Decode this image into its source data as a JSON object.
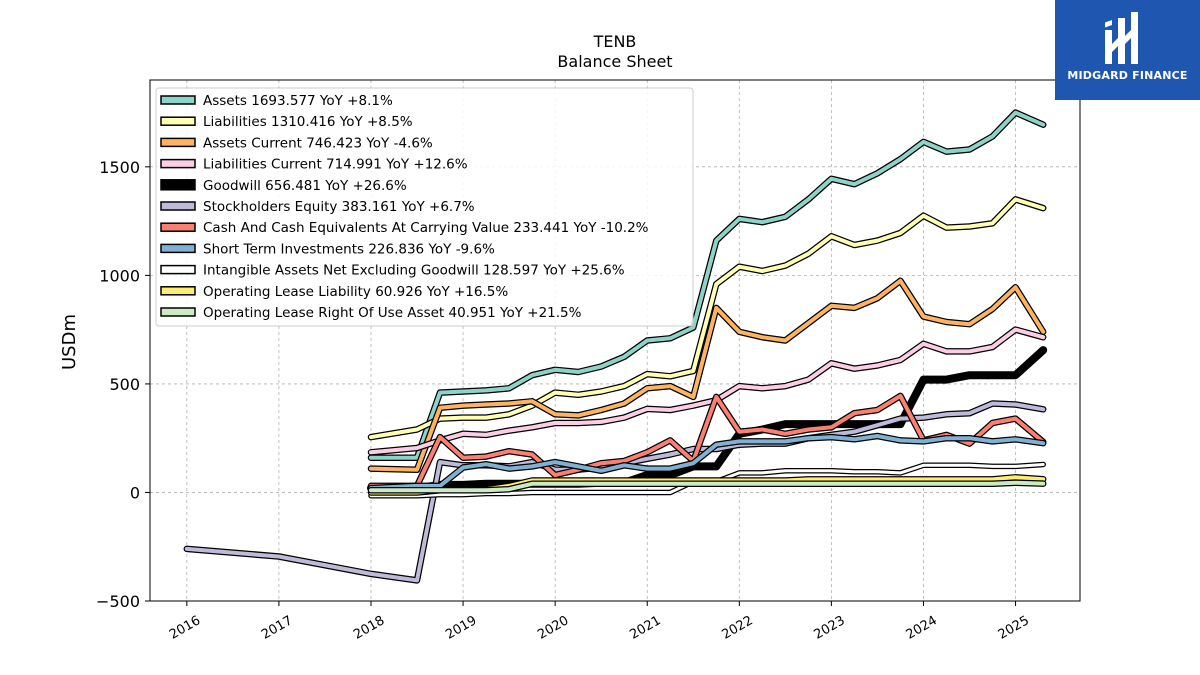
{
  "brand": {
    "name": "MIDGARD FINANCE",
    "icon": "midgard-logo-icon",
    "color": "#1f56b0"
  },
  "chart_data": {
    "type": "line",
    "title": "TENB",
    "subtitle": "Balance  Sheet",
    "ylabel": "USDm",
    "xlabel": "",
    "ylim": [
      -500,
      1900
    ],
    "xlim": [
      2015.6,
      2025.7
    ],
    "yticks": [
      -500,
      0,
      500,
      1000,
      1500
    ],
    "xticks": [
      "2016",
      "2017",
      "2018",
      "2019",
      "2020",
      "2021",
      "2022",
      "2023",
      "2024",
      "2025"
    ],
    "grid": true,
    "legend_position": "top-left",
    "series": [
      {
        "name": "Assets  1693.577 YoY +8.1%",
        "color": "#8dd3c7",
        "width": 4,
        "x": [
          2018.0,
          2018.5,
          2018.75,
          2019.0,
          2019.25,
          2019.5,
          2019.75,
          2020.0,
          2020.25,
          2020.5,
          2020.75,
          2021.0,
          2021.25,
          2021.5,
          2021.75,
          2022.0,
          2022.25,
          2022.5,
          2022.75,
          2023.0,
          2023.25,
          2023.5,
          2023.75,
          2024.0,
          2024.25,
          2024.5,
          2024.75,
          2025.0,
          2025.3
        ],
        "y": [
          160,
          160,
          460,
          465,
          470,
          480,
          540,
          565,
          555,
          580,
          625,
          700,
          710,
          760,
          1160,
          1260,
          1245,
          1270,
          1350,
          1445,
          1420,
          1470,
          1535,
          1615,
          1570,
          1580,
          1640,
          1750,
          1694
        ]
      },
      {
        "name": "Liabilities  1310.416 YoY +8.5%",
        "color": "#ffffb3",
        "width": 4,
        "x": [
          2018.0,
          2018.5,
          2018.75,
          2019.0,
          2019.25,
          2019.5,
          2019.75,
          2020.0,
          2020.25,
          2020.5,
          2020.75,
          2021.0,
          2021.25,
          2021.5,
          2021.75,
          2022.0,
          2022.25,
          2022.5,
          2022.75,
          2023.0,
          2023.25,
          2023.5,
          2023.75,
          2024.0,
          2024.25,
          2024.5,
          2024.75,
          2025.0,
          2025.3
        ],
        "y": [
          255,
          290,
          340,
          345,
          345,
          360,
          400,
          460,
          450,
          465,
          490,
          545,
          535,
          560,
          960,
          1040,
          1020,
          1045,
          1100,
          1180,
          1140,
          1160,
          1195,
          1275,
          1220,
          1225,
          1240,
          1350,
          1310
        ]
      },
      {
        "name": "Assets Current  746.423 YoY -4.6%",
        "color": "#fdb462",
        "width": 4,
        "x": [
          2018.0,
          2018.5,
          2018.75,
          2019.0,
          2019.25,
          2019.5,
          2019.75,
          2020.0,
          2020.25,
          2020.5,
          2020.75,
          2021.0,
          2021.25,
          2021.5,
          2021.75,
          2022.0,
          2022.25,
          2022.5,
          2022.75,
          2023.0,
          2023.25,
          2023.5,
          2023.75,
          2024.0,
          2024.25,
          2024.5,
          2024.75,
          2025.0,
          2025.3
        ],
        "y": [
          110,
          105,
          390,
          400,
          405,
          410,
          420,
          360,
          355,
          380,
          410,
          480,
          490,
          440,
          850,
          740,
          715,
          700,
          780,
          860,
          850,
          895,
          975,
          810,
          785,
          775,
          845,
          945,
          740
        ]
      },
      {
        "name": "Liabilities Current  714.991 YoY +12.6%",
        "color": "#fccde5",
        "width": 4,
        "x": [
          2018.0,
          2018.5,
          2018.75,
          2019.0,
          2019.25,
          2019.5,
          2019.75,
          2020.0,
          2020.25,
          2020.5,
          2020.75,
          2021.0,
          2021.25,
          2021.5,
          2021.75,
          2022.0,
          2022.25,
          2022.5,
          2022.75,
          2023.0,
          2023.25,
          2023.5,
          2023.75,
          2024.0,
          2024.25,
          2024.5,
          2024.75,
          2025.0,
          2025.3
        ],
        "y": [
          185,
          205,
          240,
          270,
          265,
          285,
          300,
          320,
          320,
          325,
          345,
          385,
          380,
          400,
          425,
          490,
          480,
          490,
          520,
          595,
          570,
          585,
          610,
          685,
          650,
          650,
          670,
          750,
          715
        ]
      },
      {
        "name": "Goodwill  656.481 YoY +26.6%",
        "color": "#000000",
        "width": 8,
        "x": [
          2018.0,
          2018.5,
          2018.75,
          2019.0,
          2019.25,
          2019.5,
          2019.75,
          2020.0,
          2020.25,
          2020.5,
          2020.75,
          2021.0,
          2021.25,
          2021.5,
          2021.75,
          2022.0,
          2022.25,
          2022.5,
          2022.75,
          2023.0,
          2023.25,
          2023.5,
          2023.75,
          2024.0,
          2024.25,
          2024.5,
          2024.75,
          2025.0,
          2025.3
        ],
        "y": [
          20,
          20,
          35,
          35,
          40,
          40,
          40,
          40,
          40,
          45,
          45,
          80,
          80,
          120,
          120,
          270,
          290,
          315,
          315,
          315,
          315,
          315,
          315,
          520,
          520,
          540,
          540,
          540,
          656
        ]
      },
      {
        "name": "Stockholders Equity  383.161 YoY +6.7%",
        "color": "#bebada",
        "width": 4,
        "x": [
          2016.0,
          2017.0,
          2018.0,
          2018.5,
          2018.75,
          2019.0,
          2019.25,
          2019.5,
          2019.75,
          2020.0,
          2020.25,
          2020.5,
          2020.75,
          2021.0,
          2021.25,
          2021.5,
          2021.75,
          2022.0,
          2022.25,
          2022.5,
          2022.75,
          2023.0,
          2023.25,
          2023.5,
          2023.75,
          2024.0,
          2024.25,
          2024.5,
          2024.75,
          2025.0,
          2025.3
        ],
        "y": [
          -260,
          -295,
          -375,
          -405,
          140,
          125,
          125,
          120,
          140,
          105,
          105,
          115,
          135,
          155,
          175,
          200,
          200,
          220,
          225,
          225,
          250,
          265,
          280,
          310,
          340,
          345,
          360,
          365,
          410,
          405,
          383
        ]
      },
      {
        "name": "Cash And Cash Equivalents At Carrying Value  233.441 YoY -10.2%",
        "color": "#fb8072",
        "width": 4,
        "x": [
          2018.0,
          2018.5,
          2018.75,
          2019.0,
          2019.25,
          2019.5,
          2019.75,
          2020.0,
          2020.25,
          2020.5,
          2020.75,
          2021.0,
          2021.25,
          2021.5,
          2021.75,
          2022.0,
          2022.25,
          2022.5,
          2022.75,
          2023.0,
          2023.25,
          2023.5,
          2023.75,
          2024.0,
          2024.25,
          2024.5,
          2024.75,
          2025.0,
          2025.3
        ],
        "y": [
          30,
          30,
          255,
          160,
          165,
          190,
          175,
          80,
          105,
          135,
          145,
          185,
          240,
          145,
          440,
          280,
          290,
          270,
          290,
          300,
          365,
          380,
          445,
          240,
          265,
          225,
          320,
          340,
          233
        ]
      },
      {
        "name": "Short Term Investments  226.836 YoY -9.6%",
        "color": "#80b1d3",
        "width": 4,
        "x": [
          2018.0,
          2018.5,
          2018.75,
          2019.0,
          2019.25,
          2019.5,
          2019.75,
          2020.0,
          2020.25,
          2020.5,
          2020.75,
          2021.0,
          2021.25,
          2021.5,
          2021.75,
          2022.0,
          2022.25,
          2022.5,
          2022.75,
          2023.0,
          2023.25,
          2023.5,
          2023.75,
          2024.0,
          2024.25,
          2024.5,
          2024.75,
          2025.0,
          2025.3
        ],
        "y": [
          20,
          30,
          30,
          115,
          130,
          110,
          120,
          140,
          120,
          100,
          125,
          110,
          110,
          135,
          220,
          235,
          235,
          235,
          250,
          255,
          245,
          260,
          240,
          235,
          250,
          250,
          235,
          245,
          227
        ]
      },
      {
        "name": "Intangible Assets Net Excluding Goodwill  128.597 YoY +25.6%",
        "color": "#ffffff",
        "width": 3,
        "x": [
          2018.0,
          2018.5,
          2018.75,
          2019.0,
          2019.25,
          2019.5,
          2019.75,
          2020.0,
          2020.25,
          2020.5,
          2020.75,
          2021.0,
          2021.25,
          2021.5,
          2021.75,
          2022.0,
          2022.25,
          2022.5,
          2022.75,
          2023.0,
          2023.25,
          2023.5,
          2023.75,
          2024.0,
          2024.25,
          2024.5,
          2024.75,
          2025.0,
          2025.3
        ],
        "y": [
          -15,
          -15,
          -10,
          -10,
          -5,
          -5,
          0,
          0,
          0,
          0,
          0,
          0,
          0,
          50,
          50,
          90,
          90,
          100,
          100,
          100,
          95,
          95,
          90,
          125,
          125,
          125,
          120,
          120,
          129
        ]
      },
      {
        "name": "Operating Lease Liability  60.926 YoY +16.5%",
        "color": "#ffed6f",
        "width": 4,
        "x": [
          2018.0,
          2018.5,
          2018.75,
          2019.0,
          2019.25,
          2019.5,
          2019.75,
          2020.0,
          2020.25,
          2020.5,
          2020.75,
          2021.0,
          2021.25,
          2021.5,
          2021.75,
          2022.0,
          2022.25,
          2022.5,
          2022.75,
          2023.0,
          2023.25,
          2023.5,
          2023.75,
          2024.0,
          2024.25,
          2024.5,
          2024.75,
          2025.0,
          2025.3
        ],
        "y": [
          0,
          0,
          10,
          10,
          15,
          30,
          55,
          55,
          55,
          55,
          55,
          55,
          55,
          55,
          55,
          55,
          55,
          55,
          60,
          60,
          60,
          60,
          60,
          60,
          60,
          60,
          60,
          70,
          61
        ]
      },
      {
        "name": "Operating Lease Right Of Use Asset  40.951 YoY +21.5%",
        "color": "#ccebc5",
        "width": 4,
        "x": [
          2018.0,
          2018.5,
          2018.75,
          2019.0,
          2019.25,
          2019.5,
          2019.75,
          2020.0,
          2020.25,
          2020.5,
          2020.75,
          2021.0,
          2021.25,
          2021.5,
          2021.75,
          2022.0,
          2022.25,
          2022.5,
          2022.75,
          2023.0,
          2023.25,
          2023.5,
          2023.75,
          2024.0,
          2024.25,
          2024.5,
          2024.75,
          2025.0,
          2025.3
        ],
        "y": [
          10,
          10,
          10,
          10,
          10,
          15,
          40,
          40,
          40,
          40,
          40,
          40,
          40,
          40,
          40,
          40,
          40,
          40,
          40,
          40,
          40,
          40,
          40,
          40,
          40,
          40,
          40,
          45,
          41
        ]
      }
    ]
  }
}
